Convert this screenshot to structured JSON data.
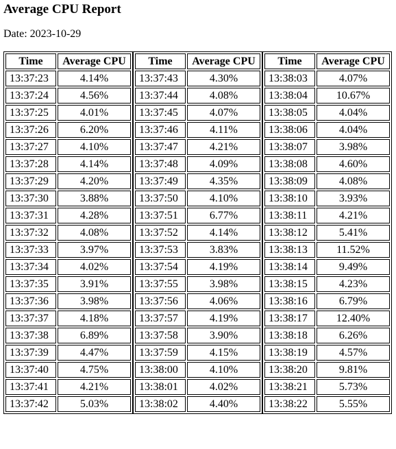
{
  "title": "Average CPU Report",
  "date_text": "Date: 2023-10-29",
  "headers": {
    "time": "Time",
    "cpu": "Average CPU"
  },
  "tables": [
    {
      "rows": [
        {
          "time": "13:37:23",
          "cpu": "4.14%"
        },
        {
          "time": "13:37:24",
          "cpu": "4.56%"
        },
        {
          "time": "13:37:25",
          "cpu": "4.01%"
        },
        {
          "time": "13:37:26",
          "cpu": "6.20%"
        },
        {
          "time": "13:37:27",
          "cpu": "4.10%"
        },
        {
          "time": "13:37:28",
          "cpu": "4.14%"
        },
        {
          "time": "13:37:29",
          "cpu": "4.20%"
        },
        {
          "time": "13:37:30",
          "cpu": "3.88%"
        },
        {
          "time": "13:37:31",
          "cpu": "4.28%"
        },
        {
          "time": "13:37:32",
          "cpu": "4.08%"
        },
        {
          "time": "13:37:33",
          "cpu": "3.97%"
        },
        {
          "time": "13:37:34",
          "cpu": "4.02%"
        },
        {
          "time": "13:37:35",
          "cpu": "3.91%"
        },
        {
          "time": "13:37:36",
          "cpu": "3.98%"
        },
        {
          "time": "13:37:37",
          "cpu": "4.18%"
        },
        {
          "time": "13:37:38",
          "cpu": "6.89%"
        },
        {
          "time": "13:37:39",
          "cpu": "4.47%"
        },
        {
          "time": "13:37:40",
          "cpu": "4.75%"
        },
        {
          "time": "13:37:41",
          "cpu": "4.21%"
        },
        {
          "time": "13:37:42",
          "cpu": "5.03%"
        }
      ]
    },
    {
      "rows": [
        {
          "time": "13:37:43",
          "cpu": "4.30%"
        },
        {
          "time": "13:37:44",
          "cpu": "4.08%"
        },
        {
          "time": "13:37:45",
          "cpu": "4.07%"
        },
        {
          "time": "13:37:46",
          "cpu": "4.11%"
        },
        {
          "time": "13:37:47",
          "cpu": "4.21%"
        },
        {
          "time": "13:37:48",
          "cpu": "4.09%"
        },
        {
          "time": "13:37:49",
          "cpu": "4.35%"
        },
        {
          "time": "13:37:50",
          "cpu": "4.10%"
        },
        {
          "time": "13:37:51",
          "cpu": "6.77%"
        },
        {
          "time": "13:37:52",
          "cpu": "4.14%"
        },
        {
          "time": "13:37:53",
          "cpu": "3.83%"
        },
        {
          "time": "13:37:54",
          "cpu": "4.19%"
        },
        {
          "time": "13:37:55",
          "cpu": "3.98%"
        },
        {
          "time": "13:37:56",
          "cpu": "4.06%"
        },
        {
          "time": "13:37:57",
          "cpu": "4.19%"
        },
        {
          "time": "13:37:58",
          "cpu": "3.90%"
        },
        {
          "time": "13:37:59",
          "cpu": "4.15%"
        },
        {
          "time": "13:38:00",
          "cpu": "4.10%"
        },
        {
          "time": "13:38:01",
          "cpu": "4.02%"
        },
        {
          "time": "13:38:02",
          "cpu": "4.40%"
        }
      ]
    },
    {
      "rows": [
        {
          "time": "13:38:03",
          "cpu": "4.07%"
        },
        {
          "time": "13:38:04",
          "cpu": "10.67%"
        },
        {
          "time": "13:38:05",
          "cpu": "4.04%"
        },
        {
          "time": "13:38:06",
          "cpu": "4.04%"
        },
        {
          "time": "13:38:07",
          "cpu": "3.98%"
        },
        {
          "time": "13:38:08",
          "cpu": "4.60%"
        },
        {
          "time": "13:38:09",
          "cpu": "4.08%"
        },
        {
          "time": "13:38:10",
          "cpu": "3.93%"
        },
        {
          "time": "13:38:11",
          "cpu": "4.21%"
        },
        {
          "time": "13:38:12",
          "cpu": "5.41%"
        },
        {
          "time": "13:38:13",
          "cpu": "11.52%"
        },
        {
          "time": "13:38:14",
          "cpu": "9.49%"
        },
        {
          "time": "13:38:15",
          "cpu": "4.23%"
        },
        {
          "time": "13:38:16",
          "cpu": "6.79%"
        },
        {
          "time": "13:38:17",
          "cpu": "12.40%"
        },
        {
          "time": "13:38:18",
          "cpu": "6.26%"
        },
        {
          "time": "13:38:19",
          "cpu": "4.57%"
        },
        {
          "time": "13:38:20",
          "cpu": "9.81%"
        },
        {
          "time": "13:38:21",
          "cpu": "5.73%"
        },
        {
          "time": "13:38:22",
          "cpu": "5.55%"
        }
      ]
    }
  ]
}
